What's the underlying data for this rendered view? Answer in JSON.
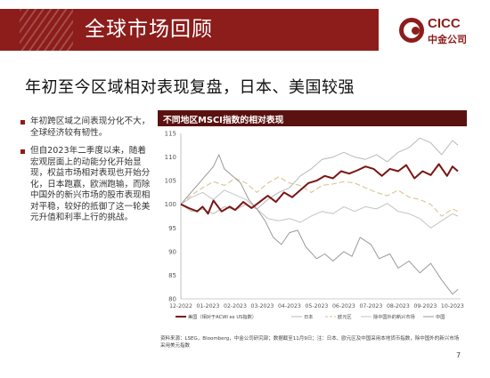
{
  "header": {
    "section_title": "全球市场回顾",
    "logo_text_en": "CICC",
    "logo_text_cn": "中金公司"
  },
  "headline": "年初至今区域相对表现复盘，日本、美国较强",
  "bullets": [
    "年初跨区域之间表现分化不大，全球经济较有韧性。",
    "但自2023年二季度以来，随着宏观层面上的动能分化开始显现，权益市场相对表现也开始分化，日本跑赢，欧洲跑输，而除中国外的新兴市场的股市表现相对平稳，较好的抵御了这一轮美元升值和利率上行的挑战。"
  ],
  "chart_header": "不同地区MSCI指数的相对表现",
  "footnote": "资料来源：LSEG，Bloomberg，中金公司研究部；数据截至11月9日；注：日本、欧元区及中国采用本地货币指数，除中国外的新兴市场采用美元指数",
  "page_number": "7",
  "colors": {
    "brand": "#8c1d1b",
    "us": "#7a1513",
    "japan": "#b9b9b9",
    "eurozone": "#d6c08a",
    "em_ex_china": "#c4c4c4",
    "china": "#9a9a9a"
  },
  "chart_data": {
    "type": "line",
    "xlabel": "",
    "ylabel": "",
    "ylim": [
      80,
      115
    ],
    "yticks": [
      80,
      85,
      90,
      95,
      100,
      105,
      110,
      115
    ],
    "x_ticks": [
      "12-2022",
      "01-2023",
      "02-2023",
      "03-2023",
      "04-2023",
      "05-2023",
      "06-2023",
      "07-2023",
      "08-2023",
      "09-2023",
      "10-2023"
    ],
    "x_range": [
      0,
      10.3
    ],
    "grid": false,
    "legend_position": "bottom",
    "series": [
      {
        "name": "美国（相对于ACWI ex US指数）",
        "color": "#7a1513",
        "width": 2,
        "dash": "",
        "points": [
          [
            0,
            100
          ],
          [
            0.3,
            99.2
          ],
          [
            0.6,
            98.5
          ],
          [
            0.8,
            99.5
          ],
          [
            1.0,
            98
          ],
          [
            1.2,
            100.8
          ],
          [
            1.5,
            98.5
          ],
          [
            1.8,
            99.5
          ],
          [
            2.0,
            98.8
          ],
          [
            2.3,
            100.5
          ],
          [
            2.6,
            99.2
          ],
          [
            2.9,
            100.5
          ],
          [
            3.2,
            101.8
          ],
          [
            3.5,
            100.5
          ],
          [
            3.8,
            102.5
          ],
          [
            4.1,
            101.5
          ],
          [
            4.4,
            103
          ],
          [
            4.7,
            104.5
          ],
          [
            5.0,
            105
          ],
          [
            5.3,
            106
          ],
          [
            5.6,
            105.5
          ],
          [
            5.9,
            107
          ],
          [
            6.2,
            106.5
          ],
          [
            6.5,
            107.2
          ],
          [
            6.8,
            108
          ],
          [
            7.1,
            107.5
          ],
          [
            7.4,
            106
          ],
          [
            7.7,
            107.5
          ],
          [
            8.0,
            107
          ],
          [
            8.3,
            108.3
          ],
          [
            8.6,
            105.5
          ],
          [
            8.9,
            107
          ],
          [
            9.2,
            106.2
          ],
          [
            9.5,
            108.5
          ],
          [
            9.8,
            106
          ],
          [
            10.0,
            108
          ],
          [
            10.2,
            107
          ]
        ]
      },
      {
        "name": "日本",
        "color": "#b9b9b9",
        "width": 1,
        "dash": "",
        "points": [
          [
            0,
            100
          ],
          [
            0.4,
            98.5
          ],
          [
            0.8,
            99
          ],
          [
            1.2,
            98
          ],
          [
            1.6,
            99.5
          ],
          [
            2.0,
            98.8
          ],
          [
            2.4,
            100
          ],
          [
            2.8,
            99
          ],
          [
            3.2,
            101
          ],
          [
            3.6,
            102.5
          ],
          [
            4.0,
            103.5
          ],
          [
            4.4,
            106
          ],
          [
            4.8,
            107.5
          ],
          [
            5.2,
            109.5
          ],
          [
            5.6,
            110
          ],
          [
            6.0,
            111
          ],
          [
            6.4,
            110
          ],
          [
            6.8,
            109.5
          ],
          [
            7.2,
            110.5
          ],
          [
            7.6,
            109
          ],
          [
            8.0,
            111
          ],
          [
            8.4,
            112
          ],
          [
            8.8,
            114
          ],
          [
            9.2,
            113
          ],
          [
            9.6,
            110.5
          ],
          [
            10.0,
            113.5
          ],
          [
            10.2,
            112.5
          ]
        ]
      },
      {
        "name": "欧元区",
        "color": "#d6c08a",
        "width": 1,
        "dash": "6,3",
        "points": [
          [
            0,
            100
          ],
          [
            0.4,
            102
          ],
          [
            0.8,
            103.5
          ],
          [
            1.2,
            104.8
          ],
          [
            1.6,
            104
          ],
          [
            2.0,
            105.5
          ],
          [
            2.4,
            104.5
          ],
          [
            2.8,
            102.5
          ],
          [
            3.2,
            104.5
          ],
          [
            3.6,
            105.8
          ],
          [
            4.0,
            104.5
          ],
          [
            4.4,
            104
          ],
          [
            4.8,
            102.5
          ],
          [
            5.2,
            104
          ],
          [
            5.6,
            104.3
          ],
          [
            6.0,
            104.8
          ],
          [
            6.4,
            104.5
          ],
          [
            6.8,
            103.5
          ],
          [
            7.2,
            102.5
          ],
          [
            7.6,
            101.8
          ],
          [
            8.0,
            103
          ],
          [
            8.4,
            101.5
          ],
          [
            8.8,
            101
          ],
          [
            9.2,
            100
          ],
          [
            9.6,
            97.5
          ],
          [
            10.0,
            99
          ],
          [
            10.2,
            98.5
          ]
        ]
      },
      {
        "name": "除中国外的新兴市场",
        "color": "#c4c4c4",
        "width": 1,
        "dash": "",
        "points": [
          [
            0,
            100
          ],
          [
            0.4,
            101.5
          ],
          [
            0.8,
            102.5
          ],
          [
            1.2,
            101
          ],
          [
            1.6,
            103
          ],
          [
            2.0,
            102
          ],
          [
            2.4,
            101
          ],
          [
            2.8,
            99
          ],
          [
            3.2,
            97
          ],
          [
            3.6,
            96.5
          ],
          [
            4.0,
            97
          ],
          [
            4.4,
            96.2
          ],
          [
            4.8,
            97.5
          ],
          [
            5.2,
            98.5
          ],
          [
            5.6,
            98
          ],
          [
            6.0,
            99.5
          ],
          [
            6.4,
            98.5
          ],
          [
            6.8,
            99.5
          ],
          [
            7.2,
            99
          ],
          [
            7.6,
            100.2
          ],
          [
            8.0,
            98.5
          ],
          [
            8.4,
            98
          ],
          [
            8.8,
            97
          ],
          [
            9.2,
            95
          ],
          [
            9.6,
            96.5
          ],
          [
            10.0,
            98
          ],
          [
            10.2,
            97.5
          ]
        ]
      },
      {
        "name": "中国",
        "color": "#9a9a9a",
        "width": 1,
        "dash": "",
        "points": [
          [
            0,
            100
          ],
          [
            0.3,
            102
          ],
          [
            0.6,
            104
          ],
          [
            0.9,
            106
          ],
          [
            1.2,
            108
          ],
          [
            1.4,
            110.5
          ],
          [
            1.6,
            107.5
          ],
          [
            1.9,
            106
          ],
          [
            2.2,
            104.5
          ],
          [
            2.5,
            101
          ],
          [
            2.8,
            99
          ],
          [
            3.1,
            96.5
          ],
          [
            3.4,
            93
          ],
          [
            3.7,
            91.5
          ],
          [
            4.0,
            94
          ],
          [
            4.3,
            94.5
          ],
          [
            4.6,
            91
          ],
          [
            5.0,
            88.5
          ],
          [
            5.3,
            89.5
          ],
          [
            5.6,
            88
          ],
          [
            6.0,
            90
          ],
          [
            6.3,
            89
          ],
          [
            6.6,
            93
          ],
          [
            7.0,
            91.5
          ],
          [
            7.3,
            88.5
          ],
          [
            7.7,
            89.5
          ],
          [
            8.0,
            86.5
          ],
          [
            8.4,
            88
          ],
          [
            8.8,
            85.5
          ],
          [
            9.2,
            87.5
          ],
          [
            9.6,
            84
          ],
          [
            10.0,
            81
          ],
          [
            10.2,
            82
          ]
        ]
      }
    ]
  }
}
